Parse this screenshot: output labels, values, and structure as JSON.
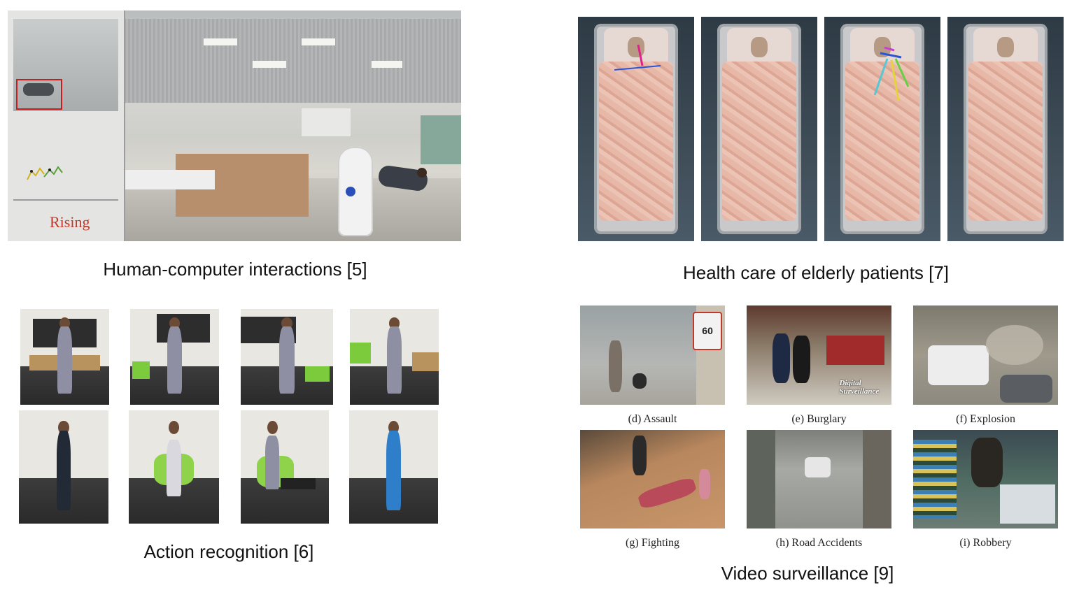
{
  "captions": {
    "hci": "Human-computer interactions [5]",
    "health": "Health care of elderly patients [7]",
    "action": "Action recognition [6]",
    "video": "Video surveillance [9]"
  },
  "hci_overlay_text": "Rising",
  "surveillance_labels": [
    "(d) Assault",
    "(e) Burglary",
    "(f) Explosion",
    "(g) Fighting",
    "(h) Road Accidents",
    "(i) Robbery"
  ],
  "burglary_watermark": "Digital Surveillance",
  "road_sign": "60"
}
